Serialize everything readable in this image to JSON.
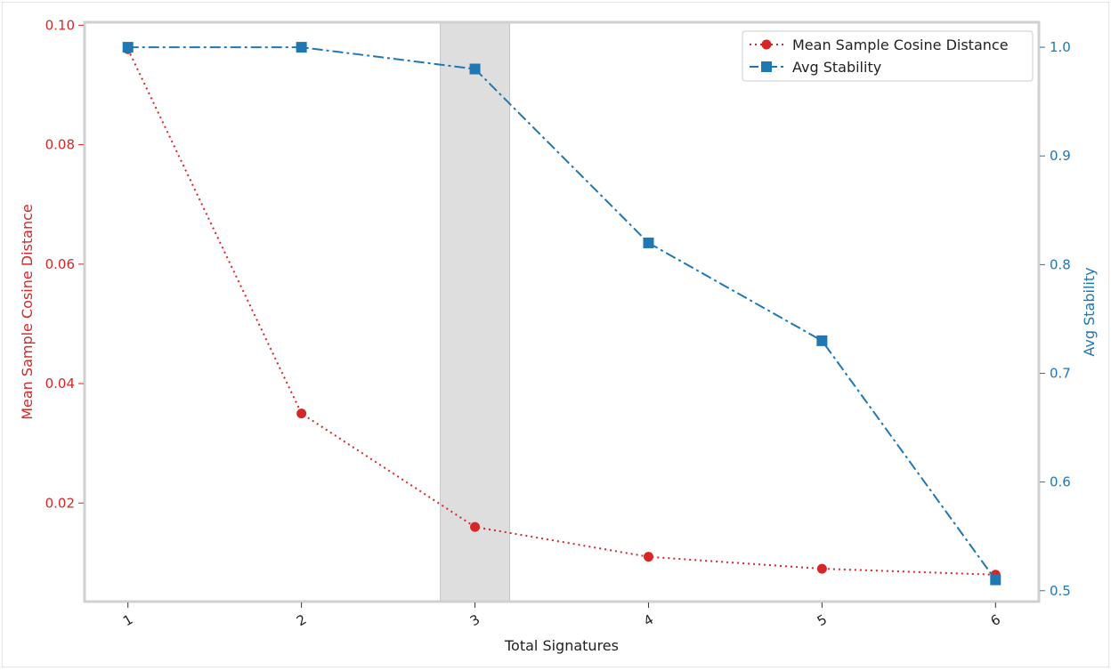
{
  "chart_data": {
    "type": "line",
    "x": [
      1,
      2,
      3,
      4,
      5,
      6
    ],
    "xlabel": "Total Signatures",
    "xticks": [
      "1",
      "2",
      "3",
      "4",
      "5",
      "6"
    ],
    "xlim": [
      0.75,
      6.25
    ],
    "highlight_span": {
      "x_from": 2.8,
      "x_to": 3.2,
      "color": "#dedede"
    },
    "y_left": {
      "label": "Mean Sample Cosine Distance",
      "ticks": [
        "0.02",
        "0.04",
        "0.06",
        "0.08",
        "0.10"
      ],
      "tick_values": [
        0.02,
        0.04,
        0.06,
        0.08,
        0.1
      ],
      "ylim": [
        0.0035,
        0.1005
      ],
      "color": "#d62728"
    },
    "y_right": {
      "label": "Avg Stability",
      "ticks": [
        "0.5",
        "0.6",
        "0.7",
        "0.8",
        "0.9",
        "1.0"
      ],
      "tick_values": [
        0.5,
        0.6,
        0.7,
        0.8,
        0.9,
        1.0
      ],
      "ylim": [
        0.49,
        1.023
      ],
      "color": "#1f77b4"
    },
    "series": [
      {
        "name": "Mean Sample Cosine Distance",
        "axis": "left",
        "values": [
          0.096,
          0.035,
          0.016,
          0.011,
          0.009,
          0.008
        ],
        "color": "#d62728",
        "marker": "circle",
        "linestyle": "dotted"
      },
      {
        "name": "Avg Stability",
        "axis": "right",
        "values": [
          1.0,
          1.0,
          0.98,
          0.82,
          0.73,
          0.51
        ],
        "color": "#1f77b4",
        "marker": "square",
        "linestyle": "dashdot"
      }
    ],
    "legend": {
      "position": "top-right"
    },
    "grid": false
  }
}
